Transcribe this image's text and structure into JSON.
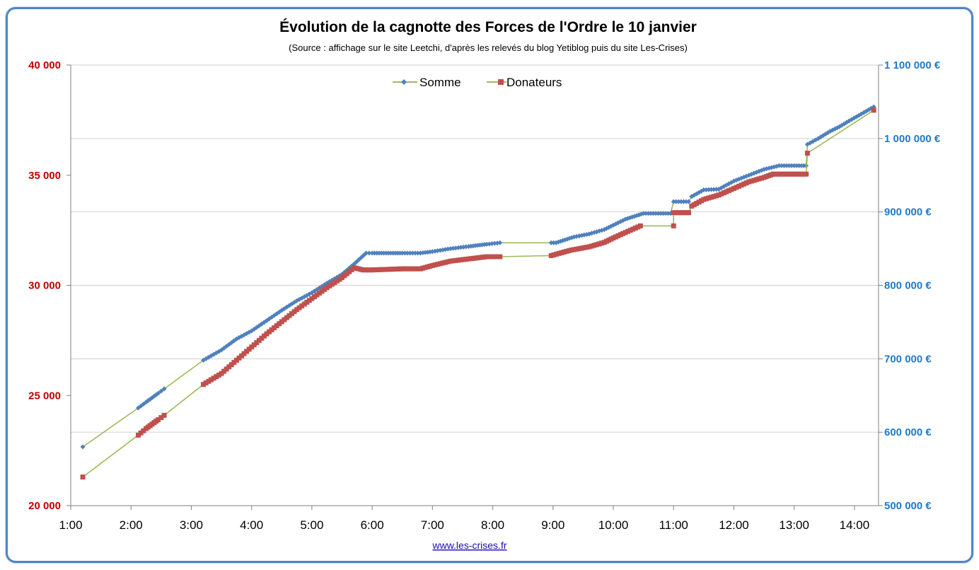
{
  "colors": {
    "somme": "#4f81bd",
    "donateurs": "#c0504d",
    "line": "#9bbb59",
    "left_axis": "#c00000",
    "right_axis": "#1f7ac8"
  },
  "chart_data": {
    "type": "line",
    "title": "Évolution de la cagnotte des Forces de l'Ordre le 10 janvier",
    "subtitle": "(Source : affichage sur le site Leetchi, d'après les relevés du blog Yetiblog puis du site Les-Crises)",
    "source_link": "www.les-crises.fr",
    "x_ticks": [
      "1:00",
      "2:00",
      "3:00",
      "4:00",
      "5:00",
      "6:00",
      "7:00",
      "8:00",
      "9:00",
      "10:00",
      "11:00",
      "12:00",
      "13:00",
      "14:00"
    ],
    "xlim": [
      1.0,
      14.4
    ],
    "y_left": {
      "label": "Donateurs",
      "ylim": [
        20000,
        40000
      ],
      "ticks": [
        "20 000",
        "25 000",
        "30 000",
        "35 000",
        "40 000"
      ]
    },
    "y_right": {
      "label": "Somme",
      "ylim": [
        500000,
        1100000
      ],
      "ticks": [
        "500 000 €",
        "600 000 €",
        "700 000 €",
        "800 000 €",
        "900 000 €",
        "1 000 000 €",
        "1 100 000 €"
      ]
    },
    "legend": [
      "Somme",
      "Donateurs"
    ],
    "series": [
      {
        "name": "Somme",
        "axis": "right",
        "points": [
          [
            1.2,
            580000
          ],
          [
            2.12,
            633000
          ],
          [
            2.25,
            641000
          ],
          [
            2.35,
            647000
          ],
          [
            2.45,
            653000
          ],
          [
            2.55,
            659000
          ],
          [
            3.2,
            698000
          ],
          [
            3.5,
            712000
          ],
          [
            3.75,
            727000
          ],
          [
            4.0,
            738000
          ],
          [
            4.25,
            752000
          ],
          [
            4.5,
            766000
          ],
          [
            4.75,
            779000
          ],
          [
            5.0,
            790000
          ],
          [
            5.25,
            803000
          ],
          [
            5.5,
            815000
          ],
          [
            5.7,
            829000
          ],
          [
            5.9,
            844000
          ],
          [
            6.0,
            844000
          ],
          [
            6.5,
            844000
          ],
          [
            6.8,
            844000
          ],
          [
            7.0,
            846000
          ],
          [
            7.3,
            850000
          ],
          [
            7.6,
            853000
          ],
          [
            7.9,
            856000
          ],
          [
            8.12,
            858000
          ],
          [
            8.97,
            858000
          ],
          [
            9.05,
            858000
          ],
          [
            9.2,
            862000
          ],
          [
            9.35,
            866000
          ],
          [
            9.6,
            870000
          ],
          [
            9.85,
            876000
          ],
          [
            10.0,
            882000
          ],
          [
            10.2,
            890000
          ],
          [
            10.5,
            898000
          ],
          [
            10.95,
            898000
          ],
          [
            11.0,
            914000
          ],
          [
            11.25,
            914000
          ],
          [
            11.3,
            921000
          ],
          [
            11.5,
            930000
          ],
          [
            11.75,
            931000
          ],
          [
            12.0,
            942000
          ],
          [
            12.25,
            950000
          ],
          [
            12.5,
            958000
          ],
          [
            12.75,
            963000
          ],
          [
            13.0,
            963000
          ],
          [
            13.2,
            963000
          ],
          [
            13.22,
            992000
          ],
          [
            13.4,
            1000000
          ],
          [
            13.6,
            1010000
          ],
          [
            13.75,
            1016000
          ],
          [
            13.87,
            1022000
          ],
          [
            14.32,
            1043000
          ]
        ]
      },
      {
        "name": "Donateurs",
        "axis": "left",
        "points": [
          [
            1.2,
            21300
          ],
          [
            2.12,
            23200
          ],
          [
            2.25,
            23500
          ],
          [
            2.35,
            23700
          ],
          [
            2.45,
            23900
          ],
          [
            2.55,
            24100
          ],
          [
            3.2,
            25500
          ],
          [
            3.5,
            26000
          ],
          [
            3.75,
            26600
          ],
          [
            4.0,
            27200
          ],
          [
            4.25,
            27800
          ],
          [
            4.5,
            28350
          ],
          [
            4.75,
            28900
          ],
          [
            5.0,
            29400
          ],
          [
            5.25,
            29900
          ],
          [
            5.5,
            30350
          ],
          [
            5.7,
            30800
          ],
          [
            5.85,
            30700
          ],
          [
            6.0,
            30700
          ],
          [
            6.5,
            30750
          ],
          [
            6.8,
            30750
          ],
          [
            7.0,
            30900
          ],
          [
            7.3,
            31100
          ],
          [
            7.6,
            31200
          ],
          [
            7.9,
            31300
          ],
          [
            8.12,
            31300
          ],
          [
            8.97,
            31350
          ],
          [
            9.1,
            31450
          ],
          [
            9.3,
            31600
          ],
          [
            9.6,
            31750
          ],
          [
            9.85,
            31950
          ],
          [
            10.0,
            32150
          ],
          [
            10.2,
            32400
          ],
          [
            10.45,
            32700
          ],
          [
            11.0,
            32700
          ],
          [
            11.0,
            33300
          ],
          [
            11.25,
            33300
          ],
          [
            11.3,
            33600
          ],
          [
            11.5,
            33900
          ],
          [
            11.75,
            34100
          ],
          [
            12.0,
            34400
          ],
          [
            12.25,
            34700
          ],
          [
            12.5,
            34900
          ],
          [
            12.65,
            35050
          ],
          [
            13.0,
            35050
          ],
          [
            13.2,
            35050
          ],
          [
            13.22,
            36000
          ],
          [
            14.32,
            37950
          ]
        ]
      }
    ]
  }
}
